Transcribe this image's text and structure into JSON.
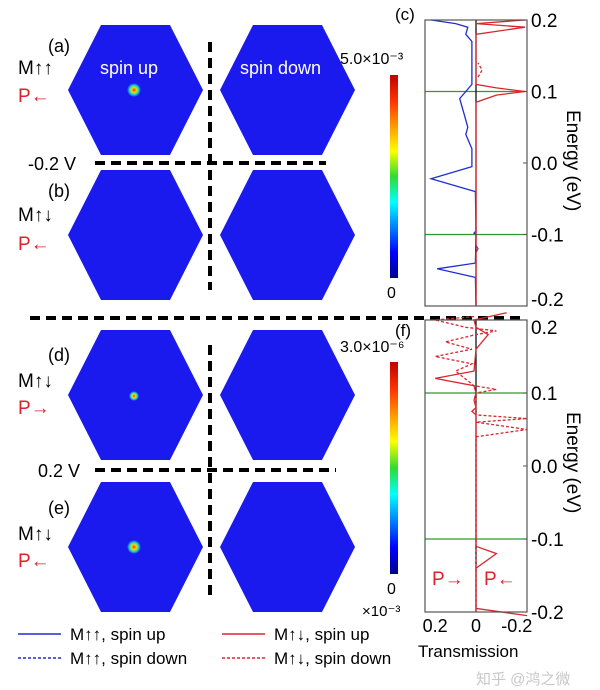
{
  "panels": {
    "a": {
      "label": "(a)",
      "state_m": "M↑↑",
      "state_p": "P←"
    },
    "b": {
      "label": "(b)",
      "state_m": "M↑↓",
      "state_p": "P←"
    },
    "c": {
      "label": "(c)"
    },
    "d": {
      "label": "(d)",
      "state_m": "M↑↓",
      "state_p": "P→"
    },
    "e": {
      "label": "(e)",
      "state_m": "M↑↓",
      "state_p": "P←"
    },
    "f": {
      "label": "(f)"
    }
  },
  "column_labels": {
    "spin_up": "spin up",
    "spin_down": "spin down"
  },
  "bias_labels": {
    "top": "-0.2 V",
    "bottom": "0.2 V"
  },
  "colorbars": {
    "top": {
      "max": "5.0×10⁻³",
      "min": "0"
    },
    "bottom": {
      "max": "3.0×10⁻⁶",
      "min": "0"
    }
  },
  "colors": {
    "hex_fill": "#1a1aef",
    "spin_up_mup": "#1f2fd0",
    "mupdown": "#d9262e",
    "guide": "#2e9a2e",
    "arrow_down": "#6aa7d8"
  },
  "legend": [
    {
      "label": "M↑↑, spin up",
      "style": "solid",
      "color": "#1f2fd0"
    },
    {
      "label": "M↑↑, spin down",
      "style": "dashed",
      "color": "#1f2fd0"
    },
    {
      "label": "M↑↓, spin up",
      "style": "solid",
      "color": "#d9262e"
    },
    {
      "label": "M↑↓, spin down",
      "style": "dashed",
      "color": "#d9262e"
    }
  ],
  "watermark": "知乎 @鸿之微",
  "chart_data": [
    {
      "type": "line",
      "panel": "(c)",
      "xlabel": "Transmission",
      "ylabel": "Energy (eV)",
      "xlim": [
        0.25,
        -0.25
      ],
      "ylim": [
        -0.2,
        0.2
      ],
      "x_ticks": [
        "0.2",
        "0",
        "-0.2"
      ],
      "x_scale_note": "×10⁻³",
      "y_ticks": [
        "0.2",
        "0.1",
        "0.0",
        "-0.1",
        "-0.2"
      ],
      "guide_lines_energy": [
        0.1,
        -0.1
      ],
      "series": [
        {
          "name": "M↑↑, spin up",
          "style": "solid",
          "color": "#1f2fd0",
          "points": [
            [
              -0.2,
              0
            ],
            [
              -0.16,
              0.003
            ],
            [
              -0.148,
              0.19
            ],
            [
              -0.14,
              0.003
            ],
            [
              -0.1,
              0
            ],
            [
              -0.098,
              0.01
            ],
            [
              -0.095,
              0
            ],
            [
              -0.04,
              0.003
            ],
            [
              -0.022,
              0.22
            ],
            [
              -0.005,
              0.02
            ],
            [
              0.02,
              0.02
            ],
            [
              0.04,
              0.05
            ],
            [
              0.05,
              0.04
            ],
            [
              0.07,
              0.06
            ],
            [
              0.09,
              0.08
            ],
            [
              0.11,
              0.02
            ],
            [
              0.13,
              0.02
            ],
            [
              0.17,
              0.02
            ],
            [
              0.18,
              0.05
            ],
            [
              0.19,
              0.04
            ],
            [
              0.195,
              0.1
            ],
            [
              0.2,
              0.22
            ]
          ]
        },
        {
          "name": "M↑↓, spin up",
          "style": "solid",
          "color": "#d9262e",
          "points": [
            [
              -0.2,
              0
            ],
            [
              -0.125,
              0
            ],
            [
              -0.12,
              -0.01
            ],
            [
              -0.115,
              0
            ],
            [
              0.085,
              0
            ],
            [
              0.095,
              -0.1
            ],
            [
              0.1,
              -0.24
            ],
            [
              0.105,
              -0.1
            ],
            [
              0.11,
              0
            ],
            [
              0.18,
              0
            ],
            [
              0.19,
              -0.24
            ],
            [
              0.195,
              0
            ],
            [
              0.2,
              -0.24
            ]
          ]
        },
        {
          "name": "M↑↓, spin down",
          "style": "dashed",
          "color": "#d9262e",
          "points": [
            [
              0.12,
              -0.01
            ],
            [
              0.13,
              -0.03
            ],
            [
              0.14,
              -0.01
            ]
          ]
        }
      ]
    },
    {
      "type": "line",
      "panel": "(f)",
      "xlabel": "Transmission",
      "ylabel": "Energy (eV)",
      "xlim": [
        0.25,
        -0.25
      ],
      "ylim": [
        -0.2,
        0.2
      ],
      "x_ticks": [
        "0.2",
        "0",
        "-0.2"
      ],
      "y_ticks": [
        "0.2",
        "0.1",
        "0.0",
        "-0.1",
        "-0.2"
      ],
      "guide_lines_energy": [
        0.1,
        -0.1
      ],
      "annotations": [
        "P→",
        "P←"
      ],
      "series": [
        {
          "name": "M↑↓, spin up",
          "style": "solid",
          "color": "#d9262e",
          "points": [
            [
              -0.205,
              -0.25
            ],
            [
              -0.195,
              0
            ],
            [
              -0.14,
              0
            ],
            [
              -0.12,
              -0.1
            ],
            [
              -0.11,
              0
            ],
            [
              0.07,
              0
            ],
            [
              0.075,
              0.02
            ],
            [
              0.08,
              0
            ],
            [
              0.09,
              0.01
            ],
            [
              0.1,
              0
            ],
            [
              0.11,
              0.01
            ],
            [
              0.12,
              0.2
            ],
            [
              0.13,
              0.01
            ],
            [
              0.16,
              0
            ],
            [
              0.18,
              -0.06
            ],
            [
              0.19,
              0
            ],
            [
              0.2,
              0.01
            ],
            [
              0.21,
              -0.15
            ]
          ]
        },
        {
          "name": "M↑↓, spin down",
          "style": "dashed",
          "color": "#d9262e",
          "points": [
            [
              -0.2,
              0
            ],
            [
              0.04,
              0
            ],
            [
              0.05,
              -0.25
            ],
            [
              0.06,
              0
            ],
            [
              0.065,
              -0.25
            ],
            [
              0.07,
              0
            ],
            [
              0.1,
              0
            ],
            [
              0.105,
              -0.1
            ],
            [
              0.11,
              0.01
            ],
            [
              0.13,
              0.1
            ],
            [
              0.14,
              0.02
            ],
            [
              0.15,
              0.2
            ],
            [
              0.16,
              0.02
            ],
            [
              0.17,
              0.15
            ],
            [
              0.18,
              0
            ],
            [
              0.185,
              -0.1
            ],
            [
              0.19,
              0.05
            ],
            [
              0.2,
              0.2
            ],
            [
              0.205,
              0
            ]
          ]
        }
      ]
    }
  ]
}
